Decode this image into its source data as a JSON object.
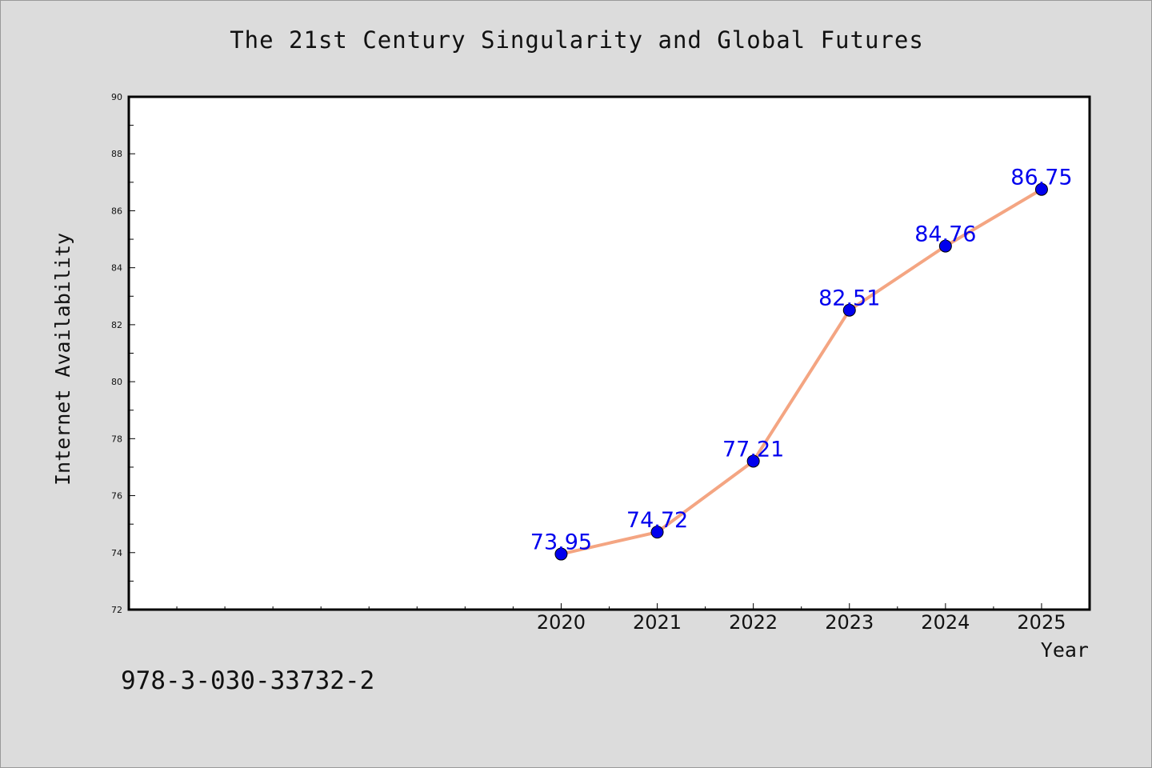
{
  "header": {
    "title": "The 21st Century Singularity and Global Futures"
  },
  "footer": {
    "isbn": "978-3-030-33732-2"
  },
  "chart_data": {
    "type": "line",
    "title": "The 21st Century Singularity and Global Futures",
    "xlabel": "Year",
    "ylabel": "Internet Availability",
    "x": [
      2020,
      2021,
      2022,
      2023,
      2024,
      2025
    ],
    "x_tick_labels": [
      "2020",
      "2021",
      "2022",
      "2023",
      "2024",
      "2025"
    ],
    "xlim": [
      2015.5,
      2025.5
    ],
    "series": [
      {
        "values": [
          73.95,
          74.72,
          77.21,
          82.51,
          84.76,
          86.75
        ],
        "labels": [
          "73.95",
          "74.72",
          "77.21",
          "82.51",
          "84.76",
          "86.75"
        ]
      }
    ],
    "ylim": [
      72,
      90
    ],
    "y_ticks": [
      72,
      74,
      76,
      78,
      80,
      82,
      84,
      86,
      88,
      90
    ],
    "y_tick_labels": [
      "72",
      "74",
      "76",
      "78",
      "80",
      "82",
      "84",
      "86",
      "88",
      "90"
    ],
    "grid": false,
    "legend": "none",
    "colors": {
      "line": "#f4a582",
      "marker": "#0000ee",
      "data_label": "#0000ee",
      "plot_background": "#ffffff",
      "figure_background": "#dcdcdc"
    }
  }
}
